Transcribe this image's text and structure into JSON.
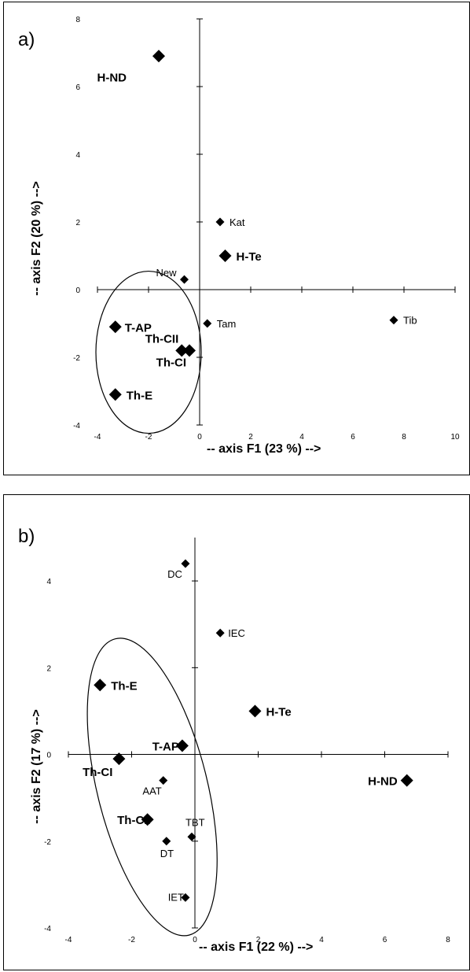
{
  "chart_data": [
    {
      "type": "scatter",
      "panel_label": "a)",
      "xlabel": "-- axis F1 (23 %) -->",
      "ylabel": "-- axis F2 (20 %) -->",
      "xlim": [
        -4,
        10
      ],
      "ylim": [
        -4,
        8
      ],
      "xticks": [
        -4,
        -2,
        0,
        2,
        4,
        6,
        8,
        10
      ],
      "yticks": [
        -4,
        -2,
        0,
        2,
        4,
        6,
        8
      ],
      "points": [
        {
          "label": "H-ND",
          "x": -1.6,
          "y": 6.9,
          "style": "large"
        },
        {
          "label": "Kat",
          "x": 0.8,
          "y": 2.0,
          "style": "small"
        },
        {
          "label": "H-Te",
          "x": 1.0,
          "y": 1.0,
          "style": "large"
        },
        {
          "label": "New",
          "x": -0.6,
          "y": 0.3,
          "style": "small"
        },
        {
          "label": "T-AP",
          "x": -3.3,
          "y": -1.1,
          "style": "large"
        },
        {
          "label": "Tam",
          "x": 0.3,
          "y": -1.0,
          "style": "small"
        },
        {
          "label": "Tib",
          "x": 7.6,
          "y": -0.9,
          "style": "small"
        },
        {
          "label": "Th-CII",
          "x": -0.7,
          "y": -1.8,
          "style": "large"
        },
        {
          "label": "Th-CI",
          "x": -0.4,
          "y": -1.8,
          "style": "large"
        },
        {
          "label": "Th-E",
          "x": -3.3,
          "y": -3.1,
          "style": "large"
        }
      ]
    },
    {
      "type": "scatter",
      "panel_label": "b)",
      "xlabel": "-- axis F1 (22 %) -->",
      "ylabel": "-- axis F2 (17 %) -->",
      "xlim": [
        -4,
        8
      ],
      "ylim": [
        -4,
        5
      ],
      "xticks": [
        -4,
        -2,
        0,
        2,
        4,
        6,
        8
      ],
      "yticks": [
        -4,
        -2,
        0,
        2,
        4
      ],
      "points": [
        {
          "label": "DC",
          "x": -0.3,
          "y": 4.4,
          "style": "small"
        },
        {
          "label": "IEC",
          "x": 0.8,
          "y": 2.8,
          "style": "small"
        },
        {
          "label": "Th-E",
          "x": -3.0,
          "y": 1.6,
          "style": "large"
        },
        {
          "label": "H-Te",
          "x": 1.9,
          "y": 1.0,
          "style": "large"
        },
        {
          "label": "T-AP",
          "x": -0.4,
          "y": 0.2,
          "style": "large"
        },
        {
          "label": "Th-CI",
          "x": -2.4,
          "y": -0.1,
          "style": "large"
        },
        {
          "label": "H-ND",
          "x": 6.7,
          "y": -0.6,
          "style": "large"
        },
        {
          "label": "AAT",
          "x": -1.0,
          "y": -0.6,
          "style": "small"
        },
        {
          "label": "Th-CII",
          "x": -1.5,
          "y": -1.5,
          "style": "large"
        },
        {
          "label": "TBT",
          "x": -0.1,
          "y": -1.9,
          "style": "small"
        },
        {
          "label": "DT",
          "x": -0.9,
          "y": -2.0,
          "style": "small"
        },
        {
          "label": "IET",
          "x": -0.3,
          "y": -3.3,
          "style": "small"
        }
      ]
    }
  ]
}
